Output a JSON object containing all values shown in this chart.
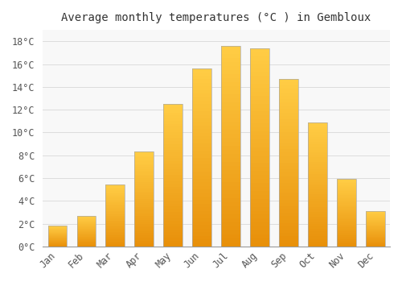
{
  "title": "Average monthly temperatures (°C ) in Gembloux",
  "months": [
    "Jan",
    "Feb",
    "Mar",
    "Apr",
    "May",
    "Jun",
    "Jul",
    "Aug",
    "Sep",
    "Oct",
    "Nov",
    "Dec"
  ],
  "values": [
    1.8,
    2.7,
    5.4,
    8.3,
    12.5,
    15.6,
    17.6,
    17.4,
    14.7,
    10.9,
    5.9,
    3.1
  ],
  "bar_color_bottom": "#E8900A",
  "bar_color_top": "#FFCC44",
  "bar_border_color": "#999900",
  "background_color": "#FFFFFF",
  "plot_bg_color": "#F8F8F8",
  "grid_color": "#DDDDDD",
  "ylim": [
    0,
    19
  ],
  "yticks": [
    0,
    2,
    4,
    6,
    8,
    10,
    12,
    14,
    16,
    18
  ],
  "ytick_labels": [
    "0°C",
    "2°C",
    "4°C",
    "6°C",
    "8°C",
    "10°C",
    "12°C",
    "14°C",
    "16°C",
    "18°C"
  ],
  "title_fontsize": 10,
  "tick_fontsize": 8.5,
  "figsize": [
    5.0,
    3.5
  ],
  "dpi": 100,
  "bar_width": 0.65,
  "n_gradient_steps": 50
}
